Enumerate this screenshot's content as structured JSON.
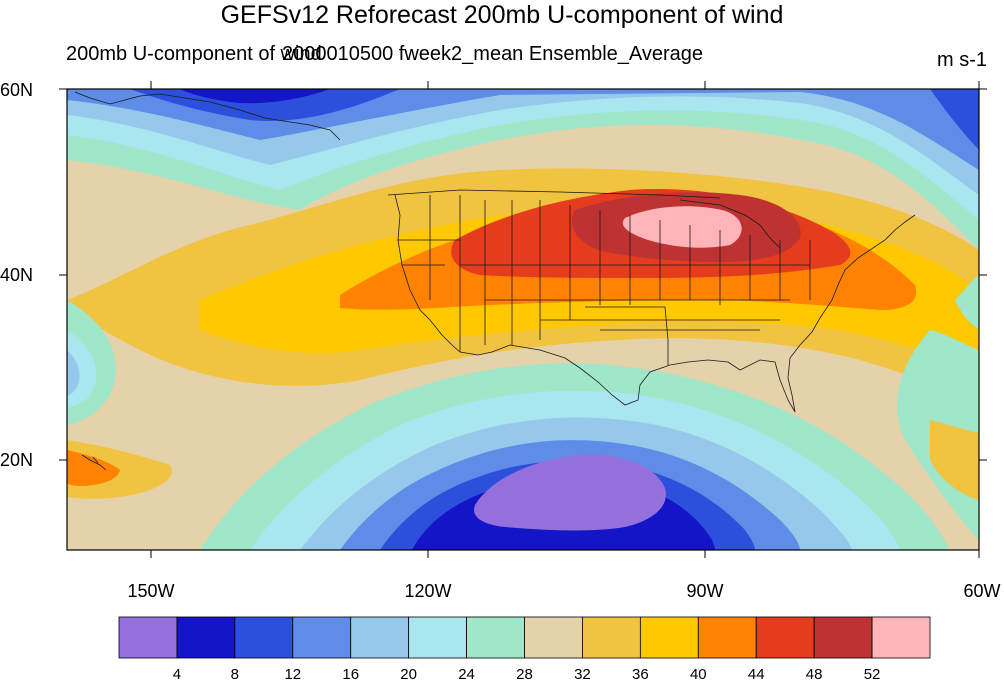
{
  "title": "GEFSv12 Reforecast 200mb U-component of wind",
  "subtitle_left": "200mb U-component of wind",
  "subtitle_center": "2000010500 fweek2_mean Ensemble_Average",
  "units": "m s-1",
  "map": {
    "lat_range": [
      10,
      60
    ],
    "lon_range": [
      -160,
      -60
    ],
    "lat_ticks": [
      {
        "value": 60,
        "label": "60N"
      },
      {
        "value": 40,
        "label": "40N"
      },
      {
        "value": 20,
        "label": "20N"
      }
    ],
    "lon_ticks": [
      {
        "value": -150,
        "label": "150W"
      },
      {
        "value": -120,
        "label": "120W"
      },
      {
        "value": -90,
        "label": "90W"
      },
      {
        "value": -60,
        "label": "60W"
      }
    ],
    "features": [
      "jet-core-great-lakes",
      "westerly-band",
      "weak-wind-minimum-mexico-pacific"
    ]
  },
  "colorbar": {
    "levels": [
      "4",
      "8",
      "12",
      "16",
      "20",
      "24",
      "28",
      "32",
      "36",
      "40",
      "44",
      "48",
      "52"
    ],
    "colors": [
      "#9370db",
      "#1414c8",
      "#2d50dc",
      "#5f8ce6",
      "#96c8eb",
      "#aae6f0",
      "#a0e6c8",
      "#e6d2aa",
      "#f0c341",
      "#ffc800",
      "#ff8200",
      "#e63c1e",
      "#be3232",
      "#ffb4b9"
    ]
  }
}
